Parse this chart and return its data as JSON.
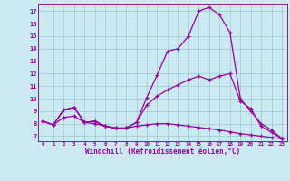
{
  "background_color": "#cbe9f0",
  "grid_color": "#a0c8d8",
  "line_color": "#990099",
  "spine_color": "#7a007a",
  "xlim": [
    -0.5,
    23.5
  ],
  "ylim": [
    6.6,
    17.6
  ],
  "xticks": [
    0,
    1,
    2,
    3,
    4,
    5,
    6,
    7,
    8,
    9,
    10,
    11,
    12,
    13,
    14,
    15,
    16,
    17,
    18,
    19,
    20,
    21,
    22,
    23
  ],
  "yticks": [
    7,
    8,
    9,
    10,
    11,
    12,
    13,
    14,
    15,
    16,
    17
  ],
  "xlabel": "Windchill (Refroidissement éolien,°C)",
  "line1_x": [
    0,
    1,
    2,
    3,
    4,
    5,
    6,
    7,
    8,
    9,
    10,
    11,
    12,
    13,
    14,
    15,
    16,
    17,
    18,
    19,
    20,
    21,
    22,
    23
  ],
  "line1_y": [
    8.2,
    7.9,
    9.1,
    9.3,
    8.1,
    8.2,
    7.8,
    7.65,
    7.65,
    8.1,
    10.1,
    11.9,
    13.8,
    14.0,
    15.0,
    17.0,
    17.3,
    16.7,
    15.3,
    10.0,
    9.0,
    8.0,
    7.5,
    6.8
  ],
  "line2_x": [
    0,
    1,
    2,
    3,
    4,
    5,
    6,
    7,
    8,
    9,
    10,
    11,
    12,
    13,
    14,
    15,
    16,
    17,
    18,
    19,
    20,
    21,
    22,
    23
  ],
  "line2_y": [
    8.2,
    7.9,
    9.1,
    9.3,
    8.1,
    8.2,
    7.8,
    7.65,
    7.65,
    8.1,
    9.5,
    10.2,
    10.7,
    11.1,
    11.5,
    11.8,
    11.5,
    11.8,
    12.0,
    9.8,
    9.2,
    7.8,
    7.3,
    6.8
  ],
  "line3_x": [
    0,
    1,
    2,
    3,
    4,
    5,
    6,
    7,
    8,
    9,
    10,
    11,
    12,
    13,
    14,
    15,
    16,
    17,
    18,
    19,
    20,
    21,
    22,
    23
  ],
  "line3_y": [
    8.2,
    7.9,
    8.5,
    8.6,
    8.1,
    8.0,
    7.8,
    7.65,
    7.65,
    7.8,
    7.9,
    8.0,
    8.0,
    7.9,
    7.8,
    7.7,
    7.6,
    7.5,
    7.35,
    7.2,
    7.1,
    7.0,
    6.9,
    6.8
  ]
}
